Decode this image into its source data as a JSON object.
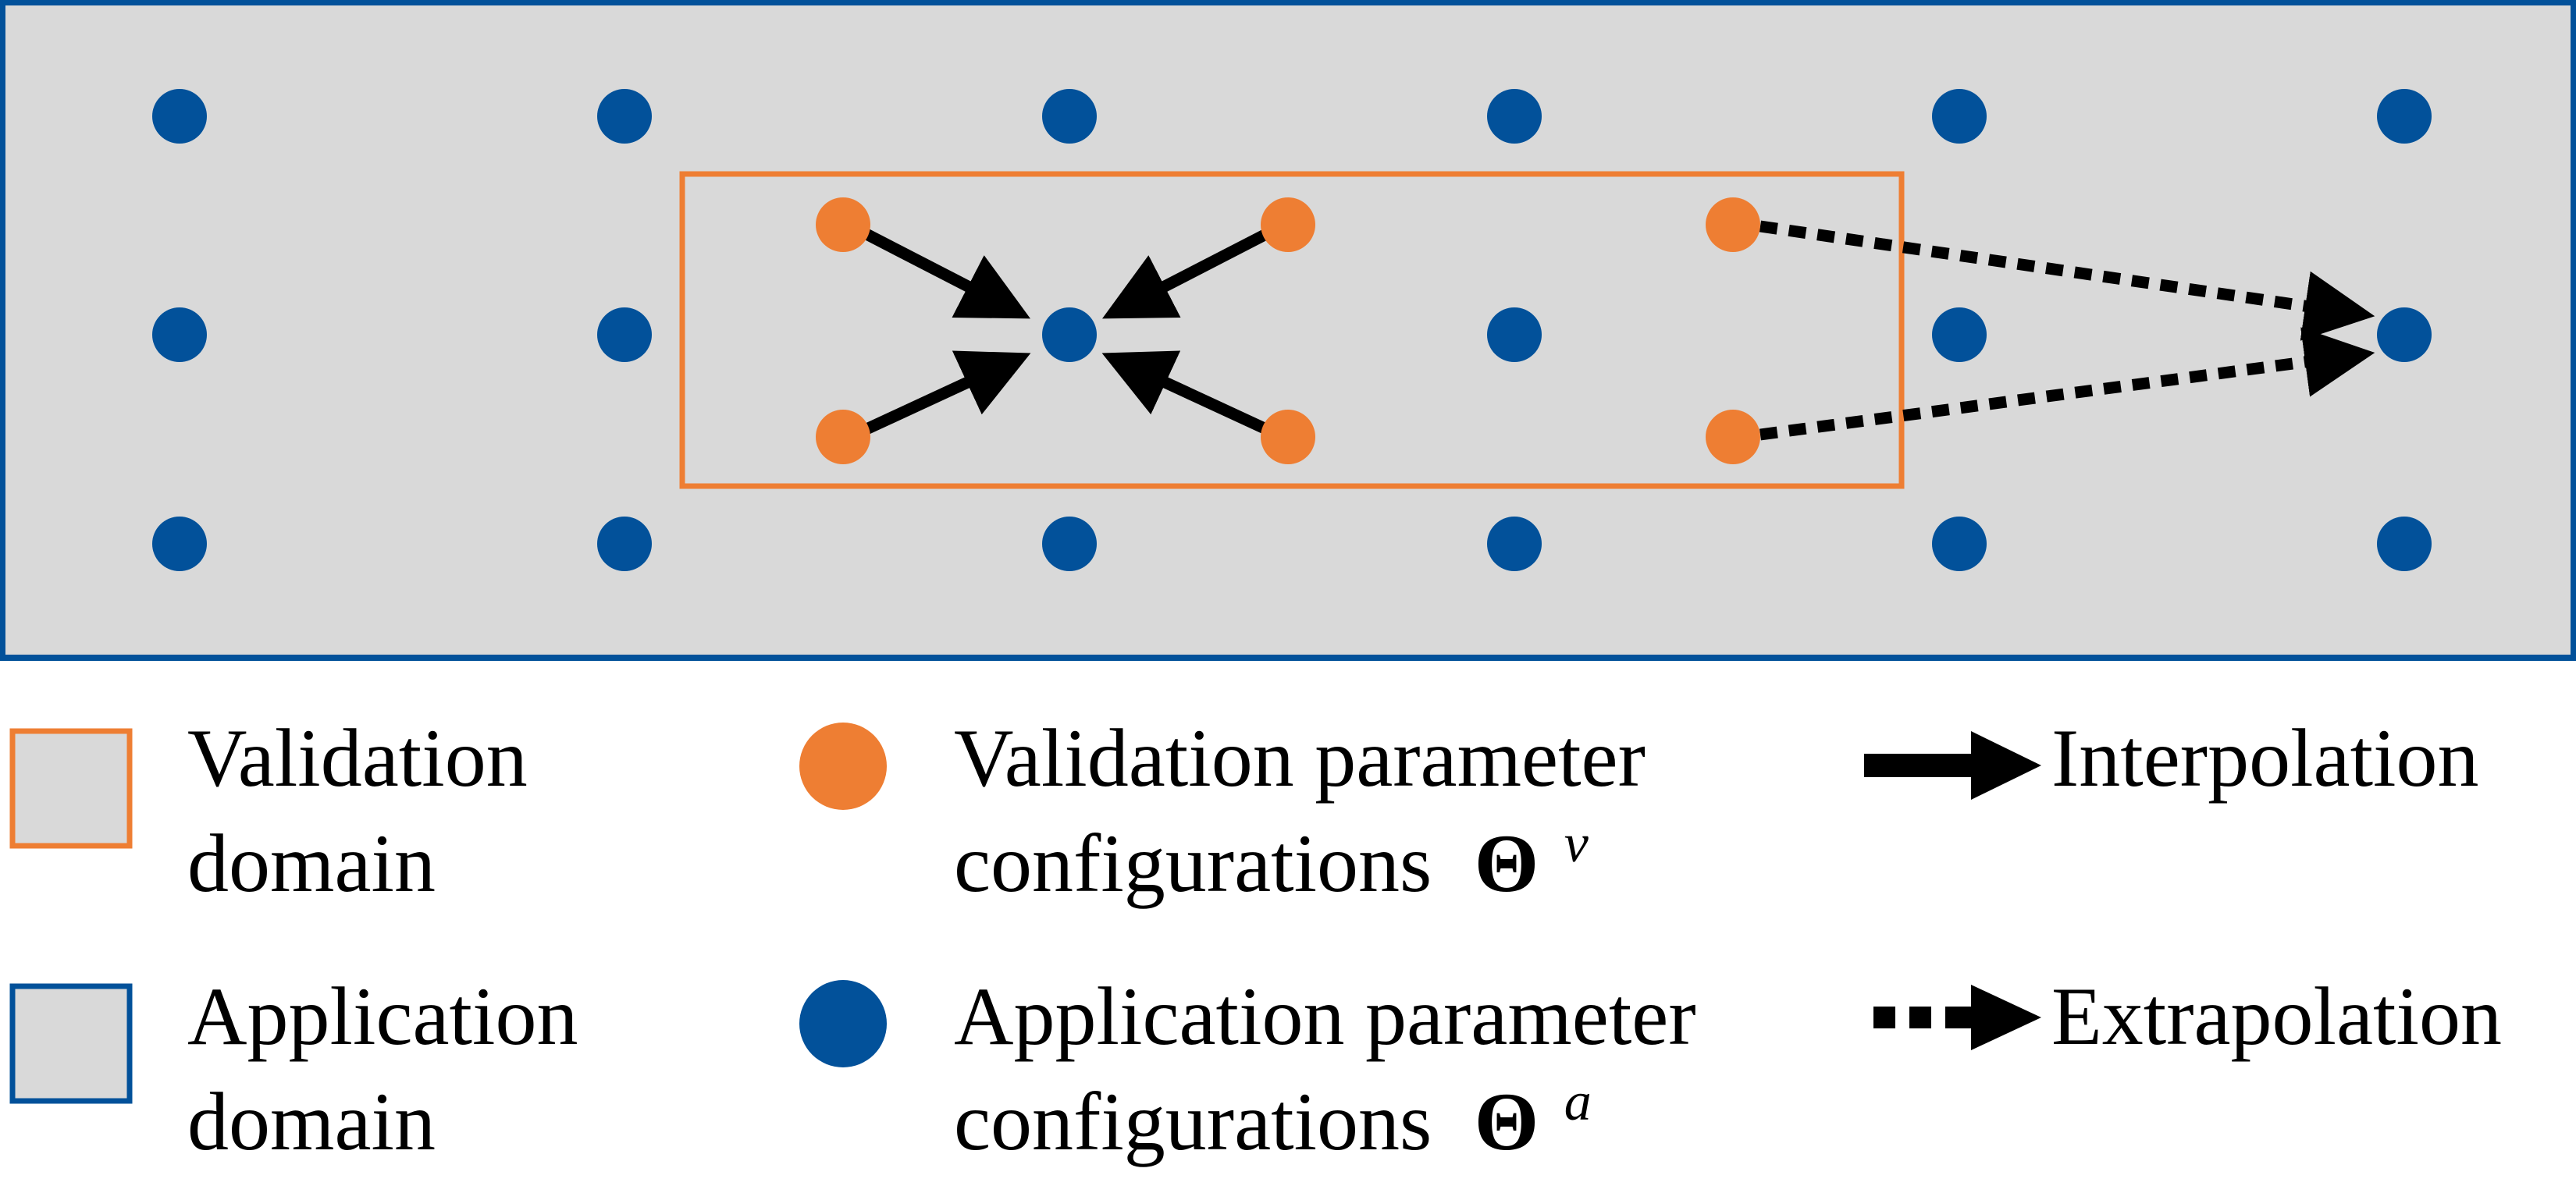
{
  "colors": {
    "application_blue": "#02519A",
    "validation_orange": "#EE7E33",
    "domain_fill": "#D9D9D9",
    "arrow_black": "#000000"
  },
  "legend": {
    "validation_domain": {
      "line1": "Validation",
      "line2": "domain"
    },
    "application_domain": {
      "line1": "Application",
      "line2": "domain"
    },
    "validation_configs": {
      "line1": "Validation parameter",
      "line2": "configurations",
      "symbol": "Θ",
      "superscript": "v"
    },
    "application_configs": {
      "line1": "Application parameter",
      "line2": "configurations",
      "symbol": "Θ",
      "superscript": "a"
    },
    "interpolation": {
      "label": "Interpolation"
    },
    "extrapolation": {
      "label": "Extrapolation"
    }
  }
}
